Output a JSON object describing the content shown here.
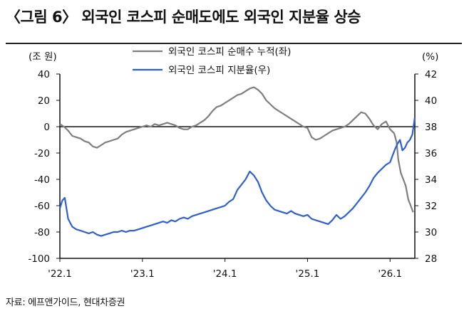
{
  "title": "〈그림 6〉 외국인 코스피 순매도에도 외국인 지분율 상승",
  "source": "자료: 에프앤가이드, 현대차증권",
  "colors": {
    "net_buy": "#7f7f7f",
    "share": "#2e5fd6",
    "axis": "#111111"
  },
  "chart_data": {
    "type": "line",
    "left_unit": "(조 원)",
    "right_unit": "(%)",
    "x_ticks": [
      "'22.1",
      "'23.1",
      "'24.1",
      "'25.1",
      "'26.1"
    ],
    "x_range": [
      2022.0,
      2026.3
    ],
    "y_left": {
      "ticks": [
        40,
        20,
        0,
        -20,
        -40,
        -60,
        -80,
        -100
      ],
      "range": [
        -100,
        40
      ]
    },
    "y_right": {
      "ticks": [
        42,
        40,
        38,
        36,
        34,
        32,
        30,
        28
      ],
      "range": [
        28,
        42
      ]
    },
    "grid": false,
    "legend": "top-center",
    "series": [
      {
        "name": "외국인 코스피 순매수 누적(좌)",
        "axis": "left",
        "x": [
          2022.0,
          2022.05,
          2022.1,
          2022.15,
          2022.2,
          2022.25,
          2022.3,
          2022.35,
          2022.4,
          2022.45,
          2022.5,
          2022.55,
          2022.6,
          2022.65,
          2022.7,
          2022.75,
          2022.8,
          2022.85,
          2022.9,
          2022.95,
          2023.0,
          2023.05,
          2023.1,
          2023.15,
          2023.2,
          2023.25,
          2023.3,
          2023.35,
          2023.4,
          2023.45,
          2023.5,
          2023.55,
          2023.6,
          2023.65,
          2023.7,
          2023.75,
          2023.8,
          2023.85,
          2023.9,
          2023.95,
          2024.0,
          2024.05,
          2024.1,
          2024.15,
          2024.2,
          2024.25,
          2024.3,
          2024.35,
          2024.4,
          2024.45,
          2024.5,
          2024.55,
          2024.6,
          2024.65,
          2024.7,
          2024.75,
          2024.8,
          2024.85,
          2024.9,
          2024.95,
          2025.0,
          2025.05,
          2025.1,
          2025.15,
          2025.2,
          2025.25,
          2025.3,
          2025.35,
          2025.4,
          2025.45,
          2025.5,
          2025.55,
          2025.6,
          2025.65,
          2025.7,
          2025.75,
          2025.8,
          2025.85,
          2025.9,
          2025.95,
          2026.0,
          2026.05,
          2026.08,
          2026.1,
          2026.13,
          2026.16,
          2026.19,
          2026.22,
          2026.25,
          2026.28
        ],
        "values": [
          2,
          0,
          -3,
          -7,
          -8,
          -9,
          -11,
          -12,
          -15,
          -16,
          -14,
          -12,
          -11,
          -10,
          -9,
          -6,
          -4,
          -3,
          -2,
          -1,
          0,
          1,
          0,
          2,
          1,
          2,
          3,
          2,
          1,
          -1,
          -2,
          -2,
          0,
          1,
          3,
          5,
          8,
          12,
          15,
          16,
          18,
          20,
          22,
          24,
          25,
          27,
          29,
          30,
          28,
          25,
          20,
          17,
          14,
          12,
          10,
          8,
          6,
          4,
          2,
          0,
          -1,
          -8,
          -10,
          -9,
          -7,
          -5,
          -3,
          -2,
          -1,
          0,
          2,
          5,
          8,
          11,
          10,
          6,
          1,
          -2,
          2,
          4,
          -2,
          -5,
          -12,
          -25,
          -35,
          -40,
          -45,
          -55,
          -60,
          -65
        ]
      },
      {
        "name": "외국인 코스피 지분율(우)",
        "axis": "right",
        "x": [
          2022.0,
          2022.03,
          2022.06,
          2022.1,
          2022.15,
          2022.2,
          2022.25,
          2022.3,
          2022.35,
          2022.4,
          2022.45,
          2022.5,
          2022.55,
          2022.6,
          2022.65,
          2022.7,
          2022.75,
          2022.8,
          2022.85,
          2022.9,
          2022.95,
          2023.0,
          2023.05,
          2023.1,
          2023.15,
          2023.2,
          2023.25,
          2023.3,
          2023.35,
          2023.4,
          2023.45,
          2023.5,
          2023.55,
          2023.6,
          2023.65,
          2023.7,
          2023.75,
          2023.8,
          2023.85,
          2023.9,
          2023.95,
          2024.0,
          2024.05,
          2024.1,
          2024.15,
          2024.2,
          2024.25,
          2024.3,
          2024.35,
          2024.4,
          2024.45,
          2024.5,
          2024.55,
          2024.6,
          2024.65,
          2024.7,
          2024.75,
          2024.8,
          2024.85,
          2024.9,
          2024.95,
          2025.0,
          2025.05,
          2025.1,
          2025.15,
          2025.2,
          2025.25,
          2025.3,
          2025.35,
          2025.4,
          2025.45,
          2025.5,
          2025.55,
          2025.6,
          2025.65,
          2025.7,
          2025.75,
          2025.8,
          2025.85,
          2025.9,
          2025.95,
          2026.0,
          2026.03,
          2026.06,
          2026.09,
          2026.12,
          2026.15,
          2026.18,
          2026.21,
          2026.24,
          2026.27,
          2026.3
        ],
        "values": [
          31.8,
          32.4,
          32.6,
          31.0,
          30.4,
          30.2,
          30.1,
          30.0,
          29.9,
          30.0,
          29.8,
          29.7,
          29.8,
          29.9,
          30.0,
          30.0,
          30.1,
          30.0,
          30.1,
          30.1,
          30.2,
          30.3,
          30.4,
          30.5,
          30.6,
          30.7,
          30.8,
          30.7,
          30.9,
          30.8,
          31.0,
          31.1,
          31.0,
          31.2,
          31.3,
          31.4,
          31.5,
          31.6,
          31.7,
          31.8,
          31.9,
          32.0,
          32.3,
          32.5,
          33.2,
          33.6,
          34.0,
          34.6,
          34.3,
          33.8,
          33.0,
          32.4,
          32.0,
          31.7,
          31.6,
          31.5,
          31.4,
          31.6,
          31.4,
          31.3,
          31.2,
          31.3,
          31.0,
          30.9,
          30.8,
          30.7,
          30.6,
          30.9,
          31.3,
          31.0,
          31.2,
          31.5,
          31.8,
          32.2,
          32.6,
          33.0,
          33.5,
          34.1,
          34.5,
          34.8,
          35.1,
          35.3,
          35.8,
          36.3,
          36.7,
          37.0,
          36.2,
          36.4,
          36.8,
          37.0,
          37.4,
          38.7
        ]
      }
    ]
  }
}
